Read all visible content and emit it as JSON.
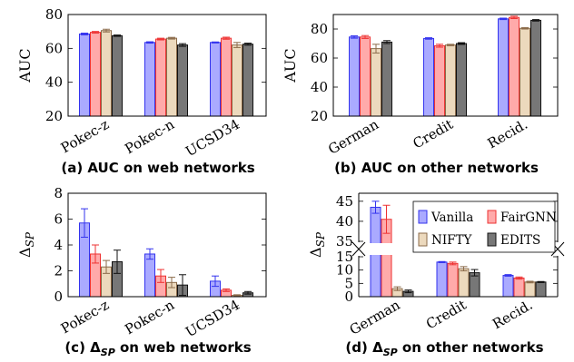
{
  "colors": {
    "Vanilla": {
      "fill": "#aaaaff",
      "stroke": "#3333ee"
    },
    "FairGNN": {
      "fill": "#ffaaaa",
      "stroke": "#ee3333"
    },
    "NIFTY": {
      "fill": "#ecd9bd",
      "stroke": "#8b6b4a"
    },
    "EDITS": {
      "fill": "#777777",
      "stroke": "#111111"
    }
  },
  "chart_data": [
    {
      "id": "a",
      "type": "bar",
      "caption_prefix": "(a) AUC on web networks",
      "ylabel": "AUC",
      "ylim": [
        20,
        80
      ],
      "yticks": [
        20,
        40,
        60,
        80
      ],
      "categories": [
        "Pokec-z",
        "Pokec-n",
        "UCSD34"
      ],
      "series": [
        {
          "name": "Vanilla",
          "values": [
            68.5,
            63.5,
            63.5
          ],
          "errors": [
            0.5,
            0.4,
            0.3
          ]
        },
        {
          "name": "FairGNN",
          "values": [
            69.5,
            65.5,
            66.0
          ],
          "errors": [
            0.5,
            0.5,
            0.6
          ]
        },
        {
          "name": "NIFTY",
          "values": [
            70.5,
            66.0,
            62.0
          ],
          "errors": [
            0.8,
            0.5,
            1.5
          ]
        },
        {
          "name": "EDITS",
          "values": [
            67.5,
            62.0,
            62.5
          ],
          "errors": [
            0.4,
            0.8,
            0.6
          ]
        }
      ]
    },
    {
      "id": "b",
      "type": "bar",
      "caption_prefix": "(b) AUC on other networks",
      "ylabel": "AUC",
      "ylim": [
        20,
        90
      ],
      "yticks": [
        20,
        40,
        60,
        80
      ],
      "categories": [
        "German",
        "Credit",
        "Recid."
      ],
      "series": [
        {
          "name": "Vanilla",
          "values": [
            74.5,
            73.5,
            87.0
          ],
          "errors": [
            0.8,
            0.5,
            0.5
          ]
        },
        {
          "name": "FairGNN",
          "values": [
            74.5,
            68.5,
            88.0
          ],
          "errors": [
            1.0,
            1.0,
            0.8
          ]
        },
        {
          "name": "NIFTY",
          "values": [
            66.5,
            69.0,
            80.5
          ],
          "errors": [
            3.0,
            0.5,
            0.5
          ]
        },
        {
          "name": "EDITS",
          "values": [
            71.0,
            70.0,
            86.0
          ],
          "errors": [
            1.0,
            0.6,
            0.5
          ]
        }
      ]
    },
    {
      "id": "c",
      "type": "bar",
      "caption_prefix": "(c) Δ",
      "caption_sub": "SP",
      "caption_suffix": " on web networks",
      "ylabel": "Δ",
      "ylabel_sub": "SP",
      "ylim": [
        0,
        8
      ],
      "yticks": [
        0,
        2,
        4,
        6,
        8
      ],
      "categories": [
        "Pokec-z",
        "Pokec-n",
        "UCSD34"
      ],
      "series": [
        {
          "name": "Vanilla",
          "values": [
            5.7,
            3.3,
            1.2
          ],
          "errors": [
            1.1,
            0.4,
            0.4
          ]
        },
        {
          "name": "FairGNN",
          "values": [
            3.3,
            1.6,
            0.5
          ],
          "errors": [
            0.7,
            0.5,
            0.1
          ]
        },
        {
          "name": "NIFTY",
          "values": [
            2.3,
            1.1,
            0.1
          ],
          "errors": [
            0.5,
            0.4,
            0.05
          ]
        },
        {
          "name": "EDITS",
          "values": [
            2.7,
            0.9,
            0.3
          ],
          "errors": [
            0.9,
            0.8,
            0.1
          ]
        }
      ]
    },
    {
      "id": "d",
      "type": "bar",
      "caption_prefix": "(d) Δ",
      "caption_sub": "SP",
      "caption_suffix": " on other networks",
      "ylabel": "Δ",
      "ylabel_sub": "SP",
      "axis_break": [
        15,
        35
      ],
      "yticks_lower": [
        0,
        5,
        10,
        15
      ],
      "yticks_upper": [
        35,
        40,
        45
      ],
      "categories": [
        "German",
        "Credit",
        "Recid."
      ],
      "series": [
        {
          "name": "Vanilla",
          "values": [
            43.5,
            13.0,
            8.0
          ],
          "errors": [
            1.5,
            0.2,
            0.3
          ]
        },
        {
          "name": "FairGNN",
          "values": [
            40.5,
            12.5,
            7.0
          ],
          "errors": [
            3.5,
            0.5,
            0.4
          ]
        },
        {
          "name": "NIFTY",
          "values": [
            3.0,
            10.5,
            5.5
          ],
          "errors": [
            0.7,
            0.8,
            0.3
          ]
        },
        {
          "name": "EDITS",
          "values": [
            2.0,
            9.0,
            5.5
          ],
          "errors": [
            0.5,
            1.2,
            0.2
          ]
        }
      ],
      "legend": {
        "placement": "inside-top-right",
        "entries": [
          "Vanilla",
          "FairGNN",
          "NIFTY",
          "EDITS"
        ]
      }
    }
  ]
}
